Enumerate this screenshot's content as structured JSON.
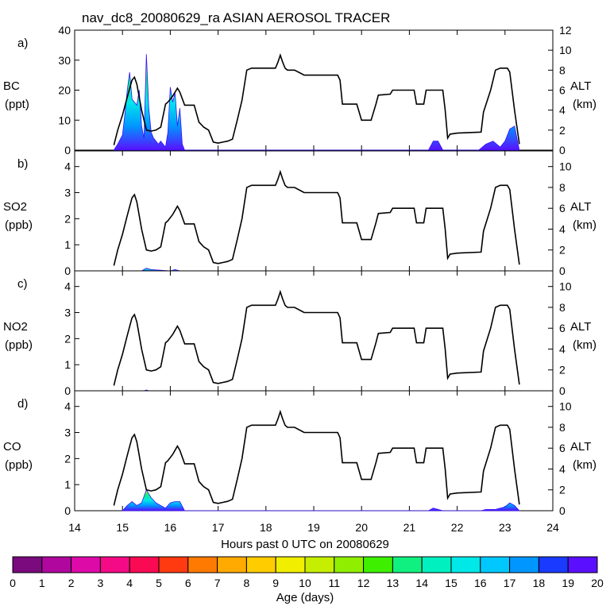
{
  "chart_data": {
    "type": "line",
    "title": "nav_dc8_20080629_ra ASIAN AEROSOL TRACER",
    "xlabel": "Hours past 0 UTC on 20080629",
    "xlim": [
      14,
      24
    ],
    "xticks": [
      "14",
      "15",
      "16",
      "17",
      "18",
      "19",
      "20",
      "21",
      "22",
      "23",
      "24"
    ],
    "altitude": {
      "label": "ALT",
      "unit": "(km)",
      "x": [
        14.82,
        14.9,
        15.0,
        15.1,
        15.2,
        15.25,
        15.3,
        15.4,
        15.5,
        15.6,
        15.7,
        15.8,
        15.9,
        15.95,
        16.05,
        16.1,
        16.15,
        16.2,
        16.3,
        16.4,
        16.5,
        16.6,
        16.7,
        16.8,
        16.9,
        17.0,
        17.1,
        17.2,
        17.3,
        17.4,
        17.5,
        17.6,
        17.7,
        18.0,
        18.2,
        18.25,
        18.3,
        18.35,
        18.4,
        18.45,
        18.6,
        18.8,
        18.9,
        19.5,
        19.55,
        19.6,
        19.9,
        20.0,
        20.2,
        20.3,
        20.35,
        20.6,
        20.65,
        21.1,
        21.15,
        21.3,
        21.35,
        21.7,
        21.75,
        21.8,
        21.85,
        22.0,
        22.5,
        22.55,
        22.7,
        22.8,
        22.9,
        23.0,
        23.05,
        23.1,
        23.2,
        23.3
      ],
      "y": [
        0.5,
        2.0,
        3.5,
        5.3,
        7.0,
        7.3,
        6.6,
        4.0,
        2.0,
        1.9,
        2.0,
        2.3,
        4.6,
        4.8,
        5.4,
        5.8,
        6.2,
        5.8,
        4.5,
        4.5,
        4.5,
        2.8,
        2.3,
        2.0,
        0.8,
        0.7,
        0.8,
        0.9,
        1.1,
        3.0,
        5.0,
        8.0,
        8.2,
        8.2,
        8.2,
        8.8,
        9.5,
        8.8,
        8.2,
        8.0,
        8.0,
        7.5,
        7.5,
        7.5,
        7.0,
        4.6,
        4.6,
        3.0,
        3.0,
        4.6,
        5.5,
        5.6,
        6.0,
        6.0,
        4.6,
        4.6,
        6.0,
        6.0,
        4.0,
        1.2,
        1.6,
        1.7,
        1.8,
        3.8,
        6.0,
        8.0,
        8.2,
        8.2,
        8.2,
        7.8,
        4.0,
        0.6
      ]
    },
    "panels": [
      {
        "letter": "a)",
        "species": "BC",
        "unit": "(ppt)",
        "ylim": [
          0,
          40
        ],
        "yticks": [
          "0",
          "10",
          "20",
          "30",
          "40"
        ],
        "alt_ticks": [
          "0",
          "2",
          "4",
          "6",
          "8",
          "10",
          "12"
        ],
        "alt_max": 12,
        "tracer": {
          "x": [
            14.82,
            14.9,
            15.0,
            15.05,
            15.1,
            15.15,
            15.2,
            15.25,
            15.3,
            15.35,
            15.4,
            15.45,
            15.5,
            15.55,
            15.6,
            15.65,
            15.7,
            15.75,
            15.8,
            15.85,
            15.9,
            15.95,
            16.0,
            16.05,
            16.1,
            16.15,
            16.2,
            16.25,
            16.3,
            21.4,
            21.5,
            21.6,
            21.7,
            22.45,
            22.6,
            22.75,
            22.9,
            23.0,
            23.1,
            23.2,
            23.3
          ],
          "values": [
            0,
            2,
            5,
            12,
            20,
            26,
            17,
            16,
            15,
            20,
            8,
            4,
            32,
            14,
            6,
            4,
            3,
            2,
            3,
            2,
            1,
            6,
            21,
            16,
            19,
            8,
            14,
            2,
            0,
            0,
            3,
            3,
            0,
            0,
            2,
            3,
            1,
            3,
            7,
            8,
            0
          ]
        }
      },
      {
        "letter": "b)",
        "species": "SO2",
        "unit": "(ppb)",
        "ylim": [
          0,
          4.6
        ],
        "yticks": [
          "0",
          "1",
          "2",
          "3",
          "4"
        ],
        "alt_ticks": [
          "0",
          "2",
          "4",
          "6",
          "8",
          "10"
        ],
        "alt_max": 11.5,
        "tracer": {
          "x": [
            15.4,
            15.5,
            15.6,
            16.0,
            16.1,
            16.2
          ],
          "values": [
            0,
            0.1,
            0.05,
            0,
            0.05,
            0
          ]
        }
      },
      {
        "letter": "c)",
        "species": "NO2",
        "unit": "(ppb)",
        "ylim": [
          0,
          4.6
        ],
        "yticks": [
          "0",
          "1",
          "2",
          "3",
          "4"
        ],
        "alt_ticks": [
          "0",
          "2",
          "4",
          "6",
          "8",
          "10"
        ],
        "alt_max": 11.5,
        "tracer": {
          "x": [
            15.45,
            15.5,
            15.55
          ],
          "values": [
            0,
            0.03,
            0
          ]
        }
      },
      {
        "letter": "d)",
        "species": "CO",
        "unit": "(ppb)",
        "ylim": [
          0,
          4.6
        ],
        "yticks": [
          "0",
          "1",
          "2",
          "3",
          "4"
        ],
        "alt_ticks": [
          "0",
          "2",
          "4",
          "6",
          "8",
          "10"
        ],
        "alt_max": 11.5,
        "tracer": {
          "x": [
            15.0,
            15.1,
            15.2,
            15.3,
            15.4,
            15.5,
            15.6,
            15.7,
            15.8,
            15.9,
            16.0,
            16.1,
            16.2,
            16.3,
            21.4,
            21.5,
            21.7,
            22.5,
            22.6,
            22.8,
            23.0,
            23.1,
            23.2,
            23.3
          ],
          "values": [
            0,
            0.2,
            0.35,
            0.2,
            0.3,
            0.8,
            0.5,
            0.3,
            0.2,
            0.1,
            0.3,
            0.35,
            0.35,
            0,
            0,
            0.1,
            0,
            0,
            0.05,
            0.05,
            0.15,
            0.3,
            0.2,
            0
          ]
        }
      }
    ],
    "colorbar": {
      "label": "Age (days)",
      "ticks": [
        "0",
        "1",
        "2",
        "3",
        "4",
        "5",
        "6",
        "7",
        "8",
        "9",
        "10",
        "11",
        "12",
        "13",
        "14",
        "15",
        "16",
        "17",
        "18",
        "19",
        "20"
      ],
      "colors": [
        "#7a0a7e",
        "#b0089e",
        "#dd0aa8",
        "#f50a86",
        "#fa0a52",
        "#ff3a10",
        "#ff7a00",
        "#ffaa00",
        "#ffcc00",
        "#f2ee00",
        "#c6ee00",
        "#90ee00",
        "#3ef000",
        "#10f080",
        "#00f0c0",
        "#00e8e8",
        "#00c8ff",
        "#0096ff",
        "#1a3aff",
        "#5a10ff"
      ]
    },
    "tracer_gradient": [
      "#5a10ff",
      "#0096ff",
      "#00e8e8",
      "#10f080",
      "#c6ee00"
    ]
  }
}
